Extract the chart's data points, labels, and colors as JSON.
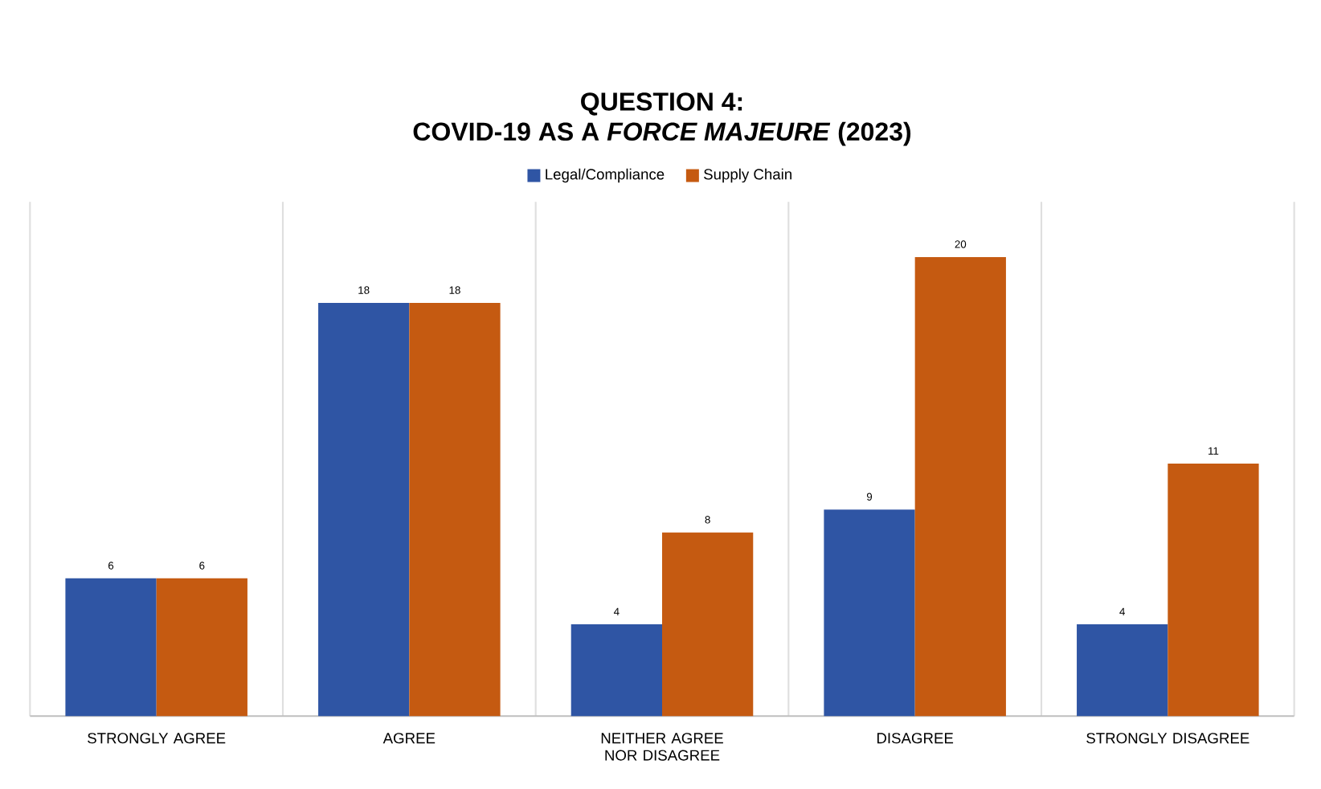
{
  "chart_data": {
    "type": "bar",
    "title": "QUESTION 4:",
    "subtitle": "COVID-19 AS A *FORCE MAJEURE* (2023)",
    "categories": [
      "STRONGLY AGREE",
      "AGREE",
      "NEITHER AGREE NOR DISAGREE",
      "DISAGREE",
      "STRONGLY DISAGREE"
    ],
    "series": [
      {
        "name": "Legal/Compliance",
        "color": "#2f55a4",
        "values": [
          6,
          18,
          4,
          9,
          4
        ]
      },
      {
        "name": "Supply Chain",
        "color": "#c55a11",
        "values": [
          6,
          18,
          8,
          20,
          11
        ]
      }
    ],
    "data_labels": true,
    "legend": "top",
    "grid": "x"
  }
}
